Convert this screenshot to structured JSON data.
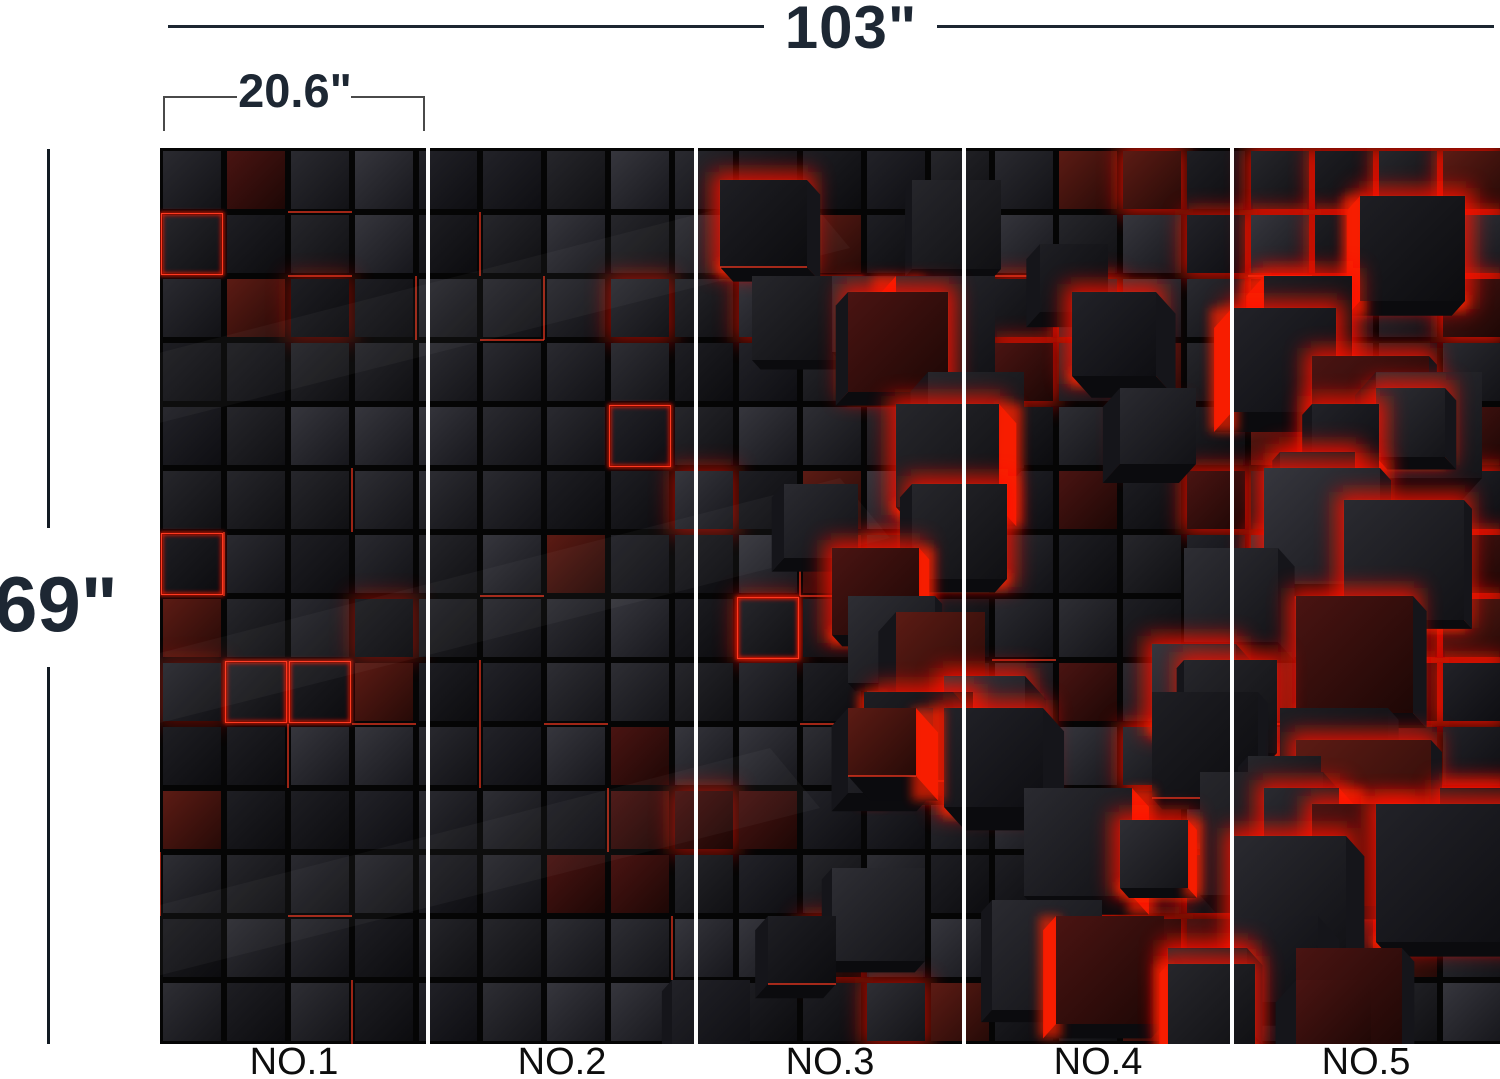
{
  "product_diagram": {
    "dimensions": {
      "total_width": "103\"",
      "panel_width": "20.6\"",
      "total_height": "69\""
    },
    "mural": {
      "panel_count": 5,
      "panel_labels": [
        "NO.1",
        "NO.2",
        "NO.3",
        "NO.4",
        "NO.5"
      ],
      "colors": {
        "background": "#050505",
        "cube_dark": "#16161a",
        "cube_light_edge": "#2f2f36",
        "cube_red_tint": "#4a1412",
        "glow_red": "#ff1600",
        "glow_red_bright": "#ff3a20",
        "divider_white": "#fdfdfd"
      }
    },
    "annotation": {
      "dimension_text_color": "#1d2733",
      "panel_label_color": "#0d0d0d"
    }
  }
}
